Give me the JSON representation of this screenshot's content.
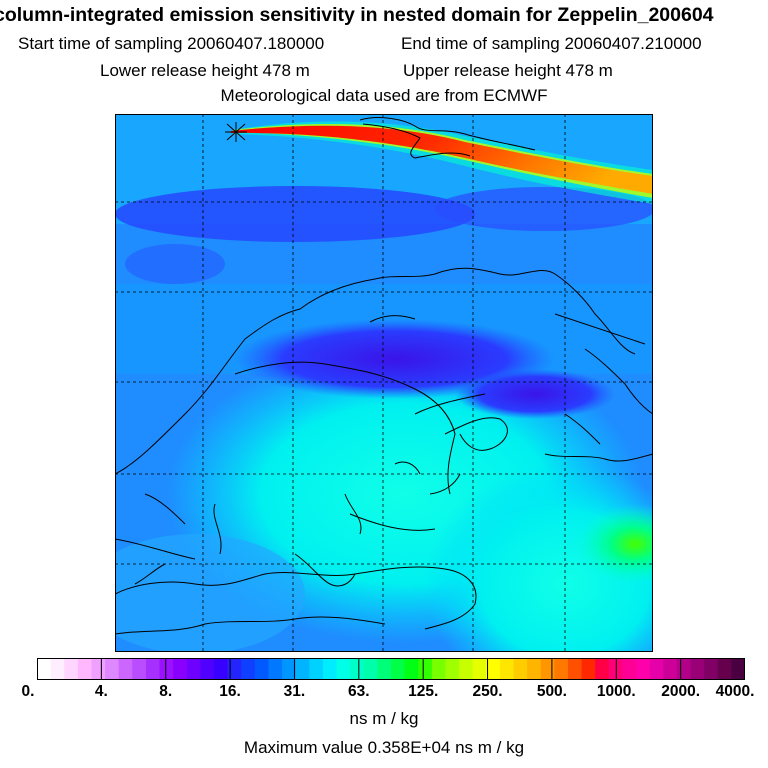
{
  "header": {
    "title": "column-integrated emission sensitivity in nested domain for Zeppelin_200604",
    "start_time": "Start time of sampling 20060407.180000",
    "end_time": "End time of sampling 20060407.210000",
    "lower_height": "Lower release height  478 m",
    "upper_height": "Upper release height  478 m",
    "met_data": "Meteorological data used are from ECMWF"
  },
  "colorbar": {
    "tick_labels": [
      "0.",
      "4.",
      "8.",
      "16.",
      "31.",
      "63.",
      "125.",
      "250.",
      "500.",
      "1000.",
      "2000.",
      "4000."
    ],
    "colors": [
      "#ffffff",
      "#ffeeff",
      "#ffd6ff",
      "#ffb8ff",
      "#f0a0ff",
      "#dd88ff",
      "#cc66ff",
      "#b94dff",
      "#a630ff",
      "#9a10ff",
      "#8a00ff",
      "#6e00ff",
      "#5000ff",
      "#3800ff",
      "#2424ff",
      "#1040ff",
      "#005aff",
      "#0078ff",
      "#0096ff",
      "#00b4ff",
      "#00d2ff",
      "#00ecff",
      "#00ffe6",
      "#00ffc8",
      "#00ffaa",
      "#00ff78",
      "#00ff46",
      "#00ff14",
      "#32ff00",
      "#78ff00",
      "#a0ff00",
      "#c8ff00",
      "#e6ff00",
      "#ffff00",
      "#ffe600",
      "#ffcc00",
      "#ffb400",
      "#ff9600",
      "#ff7800",
      "#ff5000",
      "#ff2800",
      "#ff0046",
      "#ff0078",
      "#ff0096",
      "#ff00aa",
      "#e600aa",
      "#cc0099",
      "#b30088",
      "#990077",
      "#800066",
      "#66004d",
      "#4a0040"
    ],
    "units": "ns m / kg"
  },
  "footer": {
    "max_value": "Maximum value  0.358E+04 ns m / kg"
  },
  "map": {
    "background_color": "#1f8cff",
    "plume_colors": [
      "#ff0000",
      "#ff3300",
      "#ff8800",
      "#ffcc00",
      "#ffee00",
      "#c8ff00",
      "#00ffcc"
    ],
    "release_marker": "star-marker"
  }
}
